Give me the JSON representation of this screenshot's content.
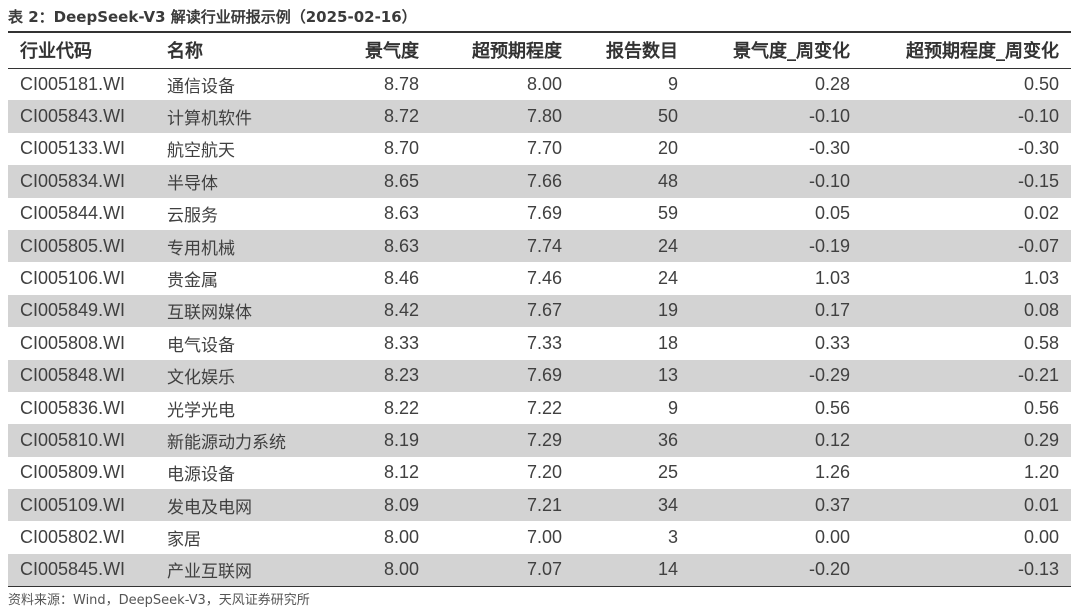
{
  "caption": "表 2：DeepSeek-V3 解读行业研报示例（2025-02-16）",
  "source": "资料来源：Wind，DeepSeek-V3，天风证券研究所",
  "columns": [
    "行业代码",
    "名称",
    "景气度",
    "超预期程度",
    "报告数目",
    "景气度_周变化",
    "超预期程度_周变化"
  ],
  "rows": [
    [
      "CI005181.WI",
      "通信设备",
      "8.78",
      "8.00",
      "9",
      "0.28",
      "0.50"
    ],
    [
      "CI005843.WI",
      "计算机软件",
      "8.72",
      "7.80",
      "50",
      "-0.10",
      "-0.10"
    ],
    [
      "CI005133.WI",
      "航空航天",
      "8.70",
      "7.70",
      "20",
      "-0.30",
      "-0.30"
    ],
    [
      "CI005834.WI",
      "半导体",
      "8.65",
      "7.66",
      "48",
      "-0.10",
      "-0.15"
    ],
    [
      "CI005844.WI",
      "云服务",
      "8.63",
      "7.69",
      "59",
      "0.05",
      "0.02"
    ],
    [
      "CI005805.WI",
      "专用机械",
      "8.63",
      "7.74",
      "24",
      "-0.19",
      "-0.07"
    ],
    [
      "CI005106.WI",
      "贵金属",
      "8.46",
      "7.46",
      "24",
      "1.03",
      "1.03"
    ],
    [
      "CI005849.WI",
      "互联网媒体",
      "8.42",
      "7.67",
      "19",
      "0.17",
      "0.08"
    ],
    [
      "CI005808.WI",
      "电气设备",
      "8.33",
      "7.33",
      "18",
      "0.33",
      "0.58"
    ],
    [
      "CI005848.WI",
      "文化娱乐",
      "8.23",
      "7.69",
      "13",
      "-0.29",
      "-0.21"
    ],
    [
      "CI005836.WI",
      "光学光电",
      "8.22",
      "7.22",
      "9",
      "0.56",
      "0.56"
    ],
    [
      "CI005810.WI",
      "新能源动力系统",
      "8.19",
      "7.29",
      "36",
      "0.12",
      "0.29"
    ],
    [
      "CI005809.WI",
      "电源设备",
      "8.12",
      "7.20",
      "25",
      "1.26",
      "1.20"
    ],
    [
      "CI005109.WI",
      "发电及电网",
      "8.09",
      "7.21",
      "34",
      "0.37",
      "0.01"
    ],
    [
      "CI005802.WI",
      "家居",
      "8.00",
      "7.00",
      "3",
      "0.00",
      "0.00"
    ],
    [
      "CI005845.WI",
      "产业互联网",
      "8.00",
      "7.07",
      "14",
      "-0.20",
      "-0.13"
    ]
  ]
}
